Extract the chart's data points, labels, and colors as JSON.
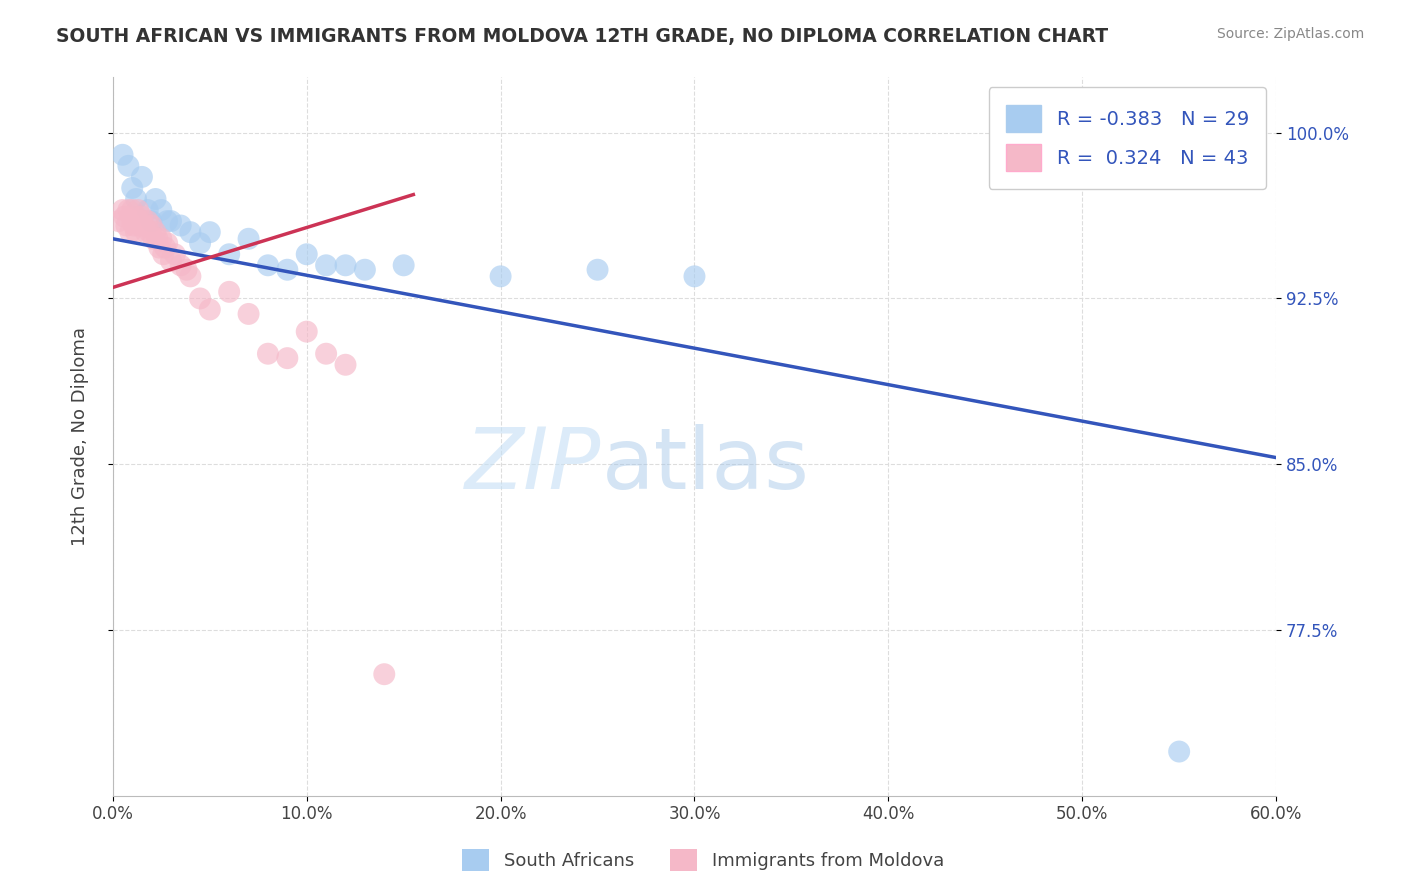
{
  "title": "SOUTH AFRICAN VS IMMIGRANTS FROM MOLDOVA 12TH GRADE, NO DIPLOMA CORRELATION CHART",
  "source": "Source: ZipAtlas.com",
  "ylabel": "12th Grade, No Diploma",
  "xmin": 0.0,
  "xmax": 0.6,
  "ymin": 0.7,
  "ymax": 1.025,
  "xtick_labels": [
    "0.0%",
    "10.0%",
    "20.0%",
    "30.0%",
    "40.0%",
    "50.0%",
    "60.0%"
  ],
  "ytick_labels": [
    "77.5%",
    "85.0%",
    "92.5%",
    "100.0%"
  ],
  "ytick_values": [
    0.775,
    0.85,
    0.925,
    1.0
  ],
  "xtick_values": [
    0.0,
    0.1,
    0.2,
    0.3,
    0.4,
    0.5,
    0.6
  ],
  "blue_color": "#A8CCF0",
  "pink_color": "#F5B8C8",
  "blue_line_color": "#3355BB",
  "pink_line_color": "#CC3355",
  "R_blue": -0.383,
  "N_blue": 29,
  "R_pink": 0.324,
  "N_pink": 43,
  "legend_label_blue": "South Africans",
  "legend_label_pink": "Immigrants from Moldova",
  "watermark_zip": "ZIP",
  "watermark_atlas": "atlas",
  "blue_line_x": [
    0.0,
    0.6
  ],
  "blue_line_y": [
    0.952,
    0.853
  ],
  "pink_line_x": [
    0.0,
    0.155
  ],
  "pink_line_y": [
    0.93,
    0.972
  ],
  "blue_scatter_x": [
    0.005,
    0.008,
    0.01,
    0.012,
    0.015,
    0.018,
    0.02,
    0.022,
    0.025,
    0.028,
    0.03,
    0.035,
    0.04,
    0.045,
    0.05,
    0.06,
    0.07,
    0.08,
    0.09,
    0.1,
    0.11,
    0.12,
    0.13,
    0.15,
    0.2,
    0.25,
    0.3,
    0.55,
    0.58
  ],
  "blue_scatter_y": [
    0.99,
    0.985,
    0.975,
    0.97,
    0.98,
    0.965,
    0.96,
    0.97,
    0.965,
    0.96,
    0.96,
    0.958,
    0.955,
    0.95,
    0.955,
    0.945,
    0.952,
    0.94,
    0.938,
    0.945,
    0.94,
    0.94,
    0.938,
    0.94,
    0.935,
    0.938,
    0.935,
    0.72,
    1.002
  ],
  "pink_scatter_x": [
    0.003,
    0.005,
    0.006,
    0.007,
    0.008,
    0.009,
    0.01,
    0.01,
    0.011,
    0.012,
    0.012,
    0.013,
    0.014,
    0.015,
    0.015,
    0.016,
    0.017,
    0.018,
    0.019,
    0.02,
    0.021,
    0.022,
    0.023,
    0.024,
    0.025,
    0.026,
    0.027,
    0.028,
    0.03,
    0.032,
    0.035,
    0.038,
    0.04,
    0.045,
    0.05,
    0.06,
    0.07,
    0.08,
    0.09,
    0.1,
    0.11,
    0.12,
    0.14
  ],
  "pink_scatter_y": [
    0.96,
    0.965,
    0.962,
    0.958,
    0.965,
    0.955,
    0.96,
    0.965,
    0.958,
    0.962,
    0.955,
    0.965,
    0.958,
    0.96,
    0.962,
    0.958,
    0.955,
    0.96,
    0.955,
    0.958,
    0.952,
    0.955,
    0.952,
    0.948,
    0.952,
    0.945,
    0.948,
    0.95,
    0.942,
    0.945,
    0.94,
    0.938,
    0.935,
    0.925,
    0.92,
    0.928,
    0.918,
    0.9,
    0.898,
    0.91,
    0.9,
    0.895,
    0.755
  ]
}
